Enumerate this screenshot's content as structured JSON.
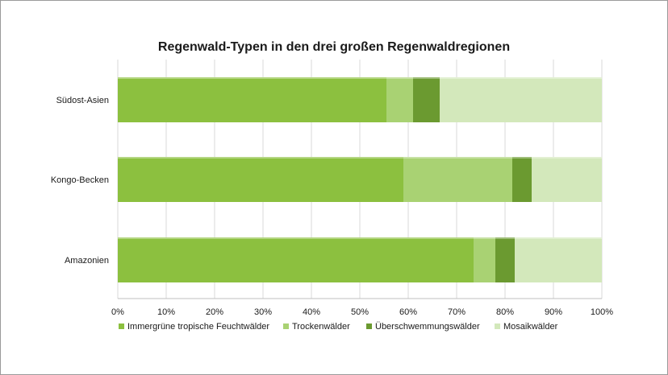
{
  "chart_data": {
    "type": "bar",
    "orientation": "horizontal",
    "stacked": true,
    "title": "Regenwald-Typen in den drei großen Regenwaldregionen",
    "xlabel": "",
    "ylabel": "",
    "categories": [
      "Südost-Asien",
      "Kongo-Becken",
      "Amazonien"
    ],
    "series": [
      {
        "name": "Immergrüne tropische Feuchtwälder",
        "color": "#8cc03f",
        "values": [
          55.5,
          59,
          73.5
        ]
      },
      {
        "name": "Trockenwälder",
        "color": "#a9d273",
        "values": [
          5.5,
          22.5,
          4.5
        ]
      },
      {
        "name": "Überschwemmungswälder",
        "color": "#6b9a30",
        "values": [
          5.5,
          4,
          4
        ]
      },
      {
        "name": "Mosaikwälder",
        "color": "#d3e8bb",
        "values": [
          33.5,
          14.5,
          18
        ]
      }
    ],
    "xlim": [
      0,
      100
    ],
    "x_ticks": [
      "0%",
      "10%",
      "20%",
      "30%",
      "40%",
      "50%",
      "60%",
      "70%",
      "80%",
      "90%",
      "100%"
    ],
    "grid": true,
    "legend_position": "bottom"
  }
}
